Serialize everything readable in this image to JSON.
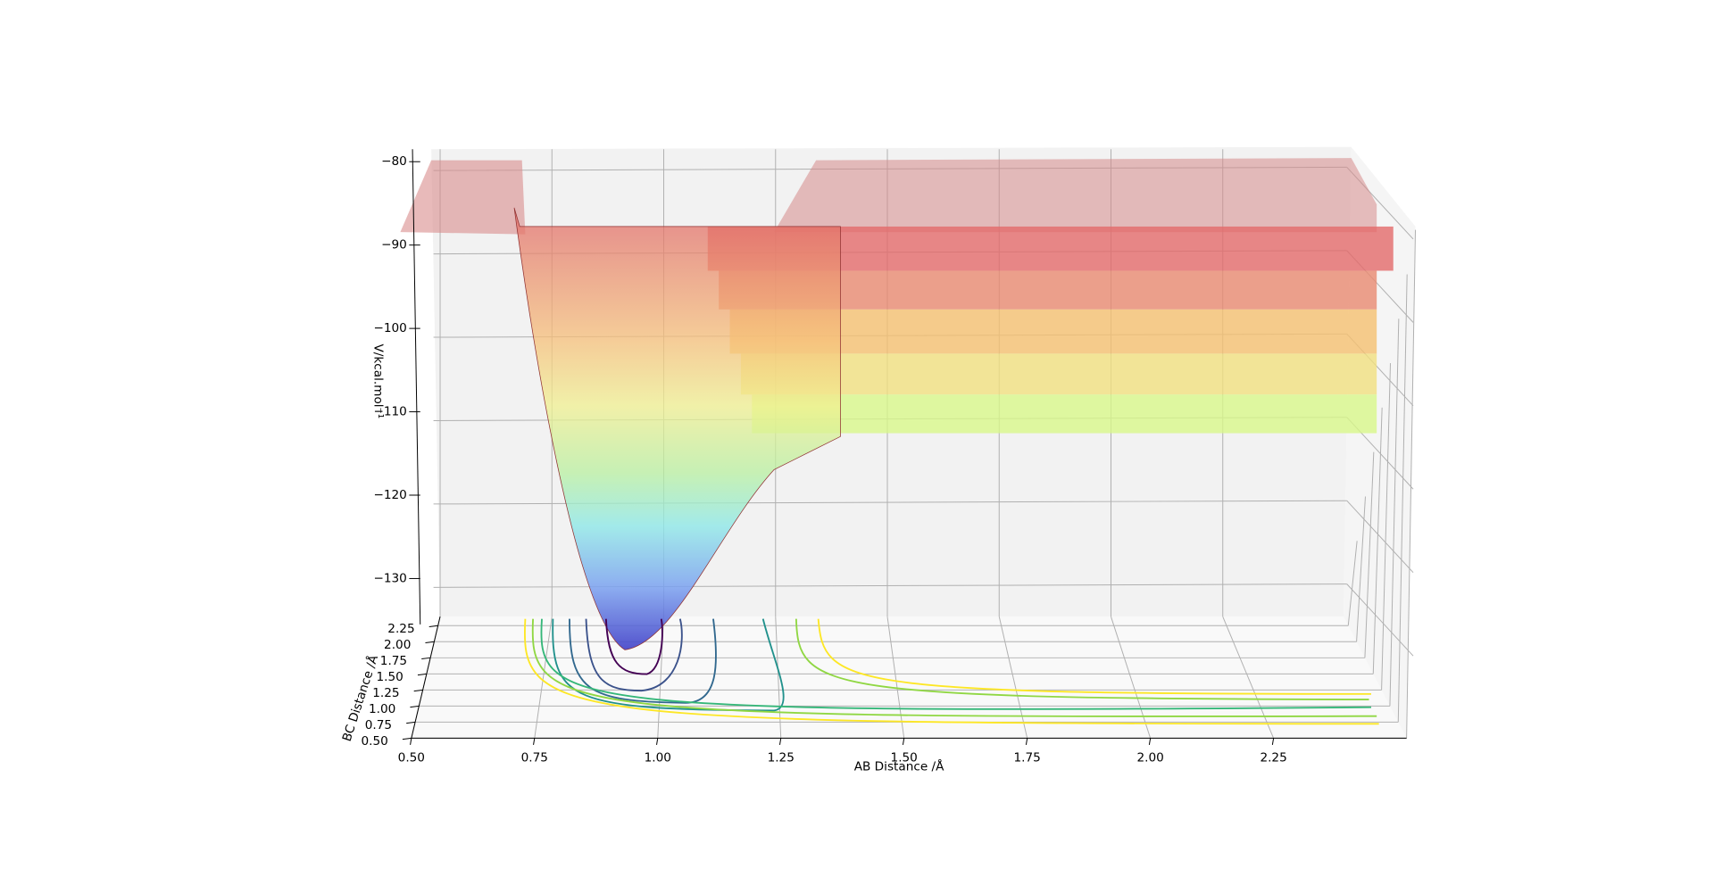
{
  "chart_data": {
    "type": "surface3d",
    "xlabel": "AB Distance /Å",
    "ylabel": "BC Distance /Å",
    "zlabel": "V/kcal.mol⁻¹",
    "xlim": [
      0.5,
      2.52
    ],
    "ylim": [
      0.5,
      2.6
    ],
    "zlim": [
      -135.5,
      -78.5
    ],
    "xticks": [
      {
        "value": 0.5,
        "label": "0.50"
      },
      {
        "value": 0.75,
        "label": "0.75"
      },
      {
        "value": 1.0,
        "label": "1.00"
      },
      {
        "value": 1.25,
        "label": "1.25"
      },
      {
        "value": 1.5,
        "label": "1.50"
      },
      {
        "value": 1.75,
        "label": "1.75"
      },
      {
        "value": 2.0,
        "label": "2.00"
      },
      {
        "value": 2.25,
        "label": "2.25"
      }
    ],
    "yticks": [
      {
        "value": 0.5,
        "label": "0.50"
      },
      {
        "value": 0.75,
        "label": "0.75"
      },
      {
        "value": 1.0,
        "label": "1.00"
      },
      {
        "value": 1.25,
        "label": "1.25"
      },
      {
        "value": 1.5,
        "label": "1.50"
      },
      {
        "value": 1.75,
        "label": "1.75"
      },
      {
        "value": 2.0,
        "label": "2.00"
      },
      {
        "value": 2.25,
        "label": "2.25"
      }
    ],
    "zticks": [
      {
        "value": -80,
        "label": "−80"
      },
      {
        "value": -90,
        "label": "−90"
      },
      {
        "value": -100,
        "label": "−100"
      },
      {
        "value": -110,
        "label": "−110"
      },
      {
        "value": -120,
        "label": "−120"
      },
      {
        "value": -130,
        "label": "−130"
      }
    ],
    "grid": true
  }
}
